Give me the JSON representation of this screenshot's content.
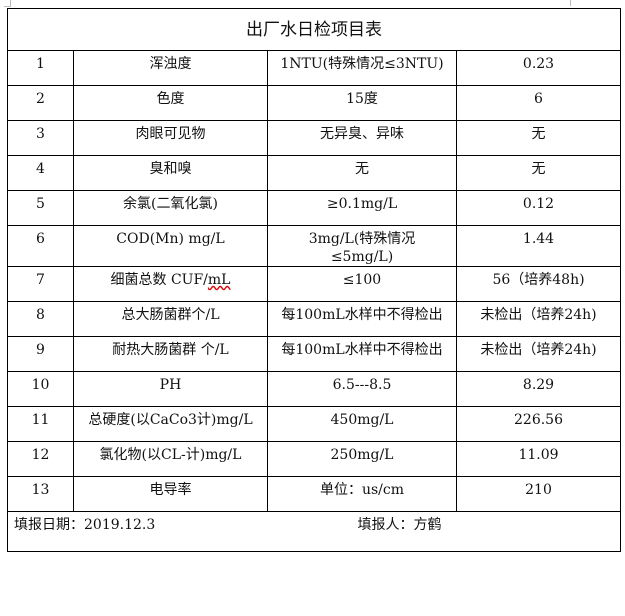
{
  "title": "出厂水日检项目表",
  "rows": [
    {
      "no": "1",
      "item": "浑浊度",
      "standard": "1NTU(特殊情况≤3NTU)",
      "result": "0.23"
    },
    {
      "no": "2",
      "item": "色度",
      "standard": "15度",
      "result": "6"
    },
    {
      "no": "3",
      "item": "肉眼可见物",
      "standard": "无异臭、异味",
      "result": "无"
    },
    {
      "no": "4",
      "item": "臭和嗅",
      "standard": "无",
      "result": "无"
    },
    {
      "no": "5",
      "item": "余氯(二氧化氯)",
      "standard": "≥0.1mg/L",
      "result": "0.12"
    },
    {
      "no": "6",
      "item": "COD(Mn)  mg/L",
      "standard": "3mg/L(特殊情况≤5mg/L)",
      "result": "1.44"
    },
    {
      "no": "7",
      "item": "细菌总数 CUF/",
      "item_unit": "mL",
      "standard": "≤100",
      "result": "56（培养48h)"
    },
    {
      "no": "8",
      "item": "总大肠菌群个/L",
      "standard": "每100mL水样中不得检出",
      "result": "未检出（培养24h)"
    },
    {
      "no": "9",
      "item": "耐热大肠菌群 个/L",
      "standard": "每100mL水样中不得检出",
      "result": "未检出（培养24h)"
    },
    {
      "no": "10",
      "item": "PH",
      "standard": "6.5---8.5",
      "result": "8.29"
    },
    {
      "no": "11",
      "item": "总硬度(以CaCo3计)mg/L",
      "standard": "450mg/L",
      "result": "226.56"
    },
    {
      "no": "12",
      "item": "氯化物(以CL-计)mg/L",
      "standard": "250mg/L",
      "result": "11.09"
    },
    {
      "no": "13",
      "item": "电导率",
      "standard": "单位：us/cm",
      "result": "210"
    }
  ],
  "footer": {
    "date": "填报日期：2019.12.3",
    "reporter": "填报人：方鹤"
  }
}
